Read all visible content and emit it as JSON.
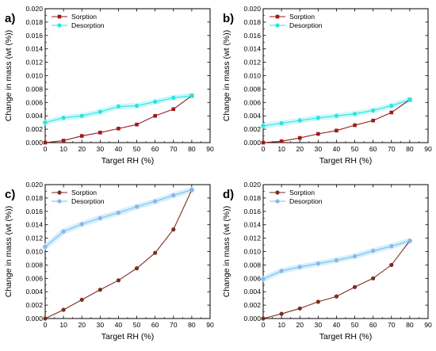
{
  "colors": {
    "sorption_dark_red": "#9b1b1b",
    "desorption_cyan": "#29e3e3",
    "sorption_brown": "#7a2e1f",
    "desorption_light_blue": "#8ab4ef",
    "band_cyan": "#c9f7f7",
    "band_light_blue": "#ccf0fb"
  },
  "chart_data": [
    {
      "panel_label": "a)",
      "type": "line",
      "xlabel": "Target RH (%)",
      "ylabel": "Change in mass (wt (%))",
      "xlim": [
        0,
        90
      ],
      "ylim": [
        0,
        0.02
      ],
      "x_ticks": [
        "0",
        "10",
        "20",
        "30",
        "40",
        "50",
        "60",
        "70",
        "80",
        "90"
      ],
      "y_ticks": [
        "0.000",
        "0.002",
        "0.004",
        "0.006",
        "0.008",
        "0.010",
        "0.012",
        "0.014",
        "0.016",
        "0.018",
        "0.020"
      ],
      "legend_position": "top-left",
      "series": [
        {
          "name": "Sorption",
          "color": "#9b1b1b",
          "marker": "square",
          "x": [
            0,
            10,
            20,
            30,
            40,
            50,
            60,
            70,
            80
          ],
          "y": [
            0.0,
            0.0003,
            0.001,
            0.0015,
            0.0021,
            0.0027,
            0.004,
            0.005,
            0.007
          ]
        },
        {
          "name": "Desorption",
          "color": "#29e3e3",
          "marker": "circle",
          "band_color": "#c9f7f7",
          "x": [
            0,
            10,
            20,
            30,
            40,
            50,
            60,
            70,
            80
          ],
          "y": [
            0.003,
            0.0037,
            0.004,
            0.0046,
            0.0054,
            0.0055,
            0.0061,
            0.0067,
            0.007
          ]
        }
      ]
    },
    {
      "panel_label": "b)",
      "type": "line",
      "xlabel": "Target RH (%)",
      "ylabel": "Change in mass (wt (%))",
      "xlim": [
        0,
        90
      ],
      "ylim": [
        0,
        0.02
      ],
      "x_ticks": [
        "0",
        "10",
        "20",
        "30",
        "40",
        "50",
        "60",
        "70",
        "80",
        "90"
      ],
      "y_ticks": [
        "0.000",
        "0.002",
        "0.004",
        "0.006",
        "0.008",
        "0.010",
        "0.012",
        "0.014",
        "0.016",
        "0.018",
        "0.020"
      ],
      "legend_position": "top-left",
      "series": [
        {
          "name": "Sorption",
          "color": "#9b1b1b",
          "marker": "square",
          "x": [
            0,
            10,
            20,
            30,
            40,
            50,
            60,
            70,
            80
          ],
          "y": [
            0.0,
            0.0002,
            0.0007,
            0.0013,
            0.0018,
            0.0026,
            0.0033,
            0.0045,
            0.0064
          ]
        },
        {
          "name": "Desorption",
          "color": "#29e3e3",
          "marker": "circle",
          "band_color": "#c9f7f7",
          "x": [
            0,
            10,
            20,
            30,
            40,
            50,
            60,
            70,
            80
          ],
          "y": [
            0.0025,
            0.0029,
            0.0033,
            0.0037,
            0.004,
            0.0043,
            0.0048,
            0.0055,
            0.0064
          ]
        }
      ]
    },
    {
      "panel_label": "c)",
      "type": "line",
      "xlabel": "Target RH (%)",
      "ylabel": "Change in mass (wt (%))",
      "xlim": [
        0,
        90
      ],
      "ylim": [
        0,
        0.02
      ],
      "x_ticks": [
        "0",
        "10",
        "20",
        "30",
        "40",
        "50",
        "60",
        "70",
        "80",
        "90"
      ],
      "y_ticks": [
        "0.000",
        "0.002",
        "0.004",
        "0.006",
        "0.008",
        "0.010",
        "0.012",
        "0.014",
        "0.016",
        "0.018",
        "0.020"
      ],
      "legend_position": "top-left",
      "series": [
        {
          "name": "Sorption",
          "color": "#7a2e1f",
          "marker": "circle",
          "x": [
            0,
            10,
            20,
            30,
            40,
            50,
            60,
            70,
            80
          ],
          "y": [
            0.0,
            0.0013,
            0.0028,
            0.0043,
            0.0057,
            0.0075,
            0.0098,
            0.0133,
            0.0192
          ]
        },
        {
          "name": "Desorption",
          "color": "#8ab4ef",
          "marker": "circle",
          "band_color": "#ccf0fb",
          "x": [
            0,
            10,
            20,
            30,
            40,
            50,
            60,
            70,
            80
          ],
          "y": [
            0.0107,
            0.013,
            0.0141,
            0.015,
            0.0158,
            0.0167,
            0.0175,
            0.0184,
            0.0192
          ]
        }
      ]
    },
    {
      "panel_label": "d)",
      "type": "line",
      "xlabel": "Target RH (%)",
      "ylabel": "Change in mass (wt (%))",
      "xlim": [
        0,
        90
      ],
      "ylim": [
        0,
        0.02
      ],
      "x_ticks": [
        "0",
        "10",
        "20",
        "30",
        "40",
        "50",
        "60",
        "70",
        "80",
        "90"
      ],
      "y_ticks": [
        "0.000",
        "0.002",
        "0.004",
        "0.006",
        "0.008",
        "0.010",
        "0.012",
        "0.014",
        "0.016",
        "0.018",
        "0.020"
      ],
      "legend_position": "top-left",
      "series": [
        {
          "name": "Sorption",
          "color": "#7a2e1f",
          "marker": "circle",
          "x": [
            0,
            10,
            20,
            30,
            40,
            50,
            60,
            70,
            80
          ],
          "y": [
            0.0,
            0.0007,
            0.0015,
            0.0025,
            0.0033,
            0.0047,
            0.006,
            0.008,
            0.0116
          ]
        },
        {
          "name": "Desorption",
          "color": "#8ab4ef",
          "marker": "circle",
          "band_color": "#ccf0fb",
          "x": [
            0,
            10,
            20,
            30,
            40,
            50,
            60,
            70,
            80
          ],
          "y": [
            0.0059,
            0.0071,
            0.0077,
            0.0082,
            0.0087,
            0.0093,
            0.0101,
            0.0108,
            0.0116
          ]
        }
      ]
    }
  ]
}
